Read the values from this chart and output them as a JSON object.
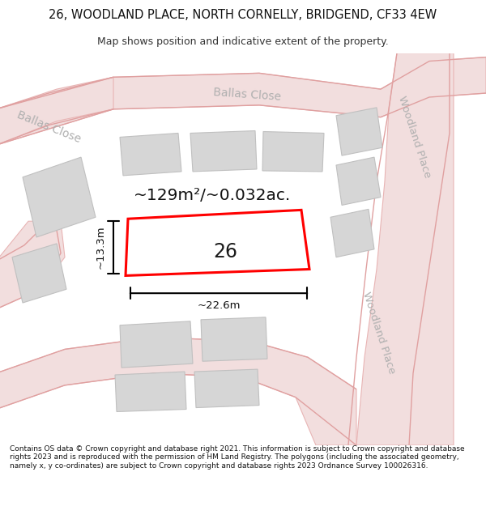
{
  "title": "26, WOODLAND PLACE, NORTH CORNELLY, BRIDGEND, CF33 4EW",
  "subtitle": "Map shows position and indicative extent of the property.",
  "footer_text": "Contains OS data © Crown copyright and database right 2021. This information is subject to Crown copyright and database rights 2023 and is reproduced with the permission of HM Land Registry. The polygons (including the associated geometry, namely x, y co-ordinates) are subject to Crown copyright and database rights 2023 Ordnance Survey 100026316.",
  "bg_color": "#ffffff",
  "map_bg": "#ffffff",
  "road_fill": "#f2dede",
  "road_edge": "#e8b4b4",
  "building_fill": "#d6d6d6",
  "building_edge": "#c0c0c0",
  "highlight_color": "#ff0000",
  "street_label_color": "#b0b0b0",
  "dim_color": "#000000",
  "area_text": "~129m²/~0.032ac.",
  "width_text": "~22.6m",
  "height_text": "~13.3m",
  "plot_label": "26",
  "street1": "Ballas Close",
  "street2": "Ballas Close",
  "street3": "Woodland Place",
  "street4": "Woodland Place"
}
